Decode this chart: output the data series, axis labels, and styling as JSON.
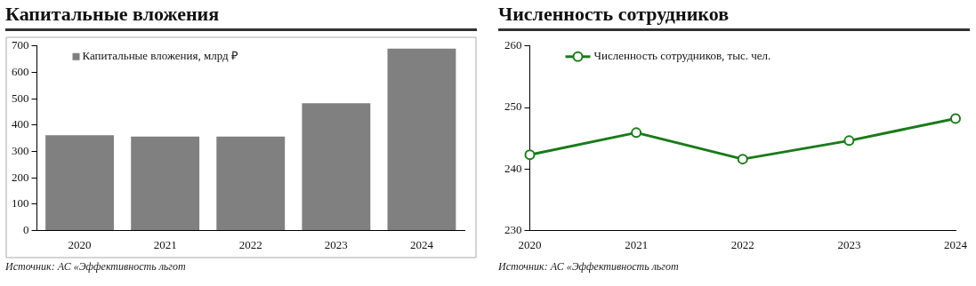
{
  "chart_data": [
    {
      "type": "bar",
      "title": "Капитальные вложения",
      "categories": [
        "2020",
        "2021",
        "2022",
        "2023",
        "2024"
      ],
      "series": [
        {
          "name": "Капитальные вложения, млрд ₽",
          "color": "#808080",
          "values": [
            361,
            356,
            356,
            483,
            690
          ]
        }
      ],
      "ylim": [
        0,
        700
      ],
      "yticks": [
        0,
        100,
        200,
        300,
        400,
        500,
        600,
        700
      ],
      "grid": false,
      "legend": "top left",
      "annotations": [
        "Источник: АС «Эффективность льгот"
      ]
    },
    {
      "type": "line",
      "title": "Численность сотрудников",
      "categories": [
        "2020",
        "2021",
        "2022",
        "2023",
        "2024"
      ],
      "series": [
        {
          "name": "Численность сотрудников, тыс. чел.",
          "color": "#1a7a1a",
          "values": [
            242.3,
            245.9,
            241.6,
            244.6,
            248.2
          ]
        }
      ],
      "ylim": [
        230,
        260
      ],
      "yticks": [
        230,
        240,
        250,
        260
      ],
      "grid": false,
      "legend": "top left",
      "marker": "circle",
      "line_style": "solid",
      "annotations": [
        "Источник: АС «Эффективность льгот"
      ]
    }
  ]
}
